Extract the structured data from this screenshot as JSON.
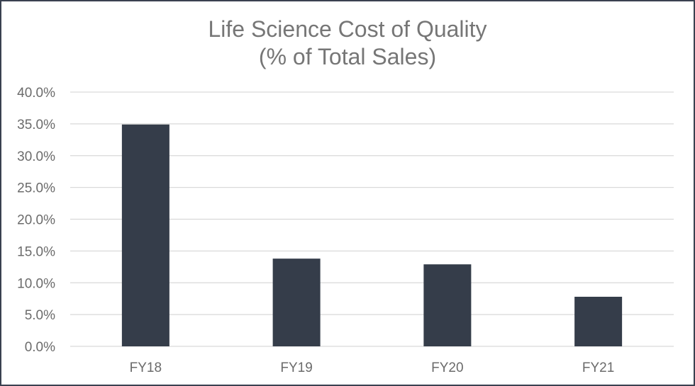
{
  "chart_data": {
    "type": "bar",
    "title": "Life Science Cost of Quality",
    "subtitle": "(% of Total Sales)",
    "categories": [
      "FY18",
      "FY19",
      "FY20",
      "FY21"
    ],
    "series": [
      {
        "values": [
          34.9,
          13.8,
          12.9,
          7.8
        ]
      }
    ],
    "xlabel": "",
    "ylabel": "",
    "ylim": [
      0,
      40
    ],
    "yticks": [
      "0.0%",
      "5.0%",
      "10.0%",
      "15.0%",
      "20.0%",
      "25.0%",
      "30.0%",
      "35.0%",
      "40.0%"
    ],
    "grid": true,
    "legend": "none",
    "bar_color": "#353d4a",
    "grid_color": "#d9d9d9",
    "text_color": "#6b6b6b"
  }
}
